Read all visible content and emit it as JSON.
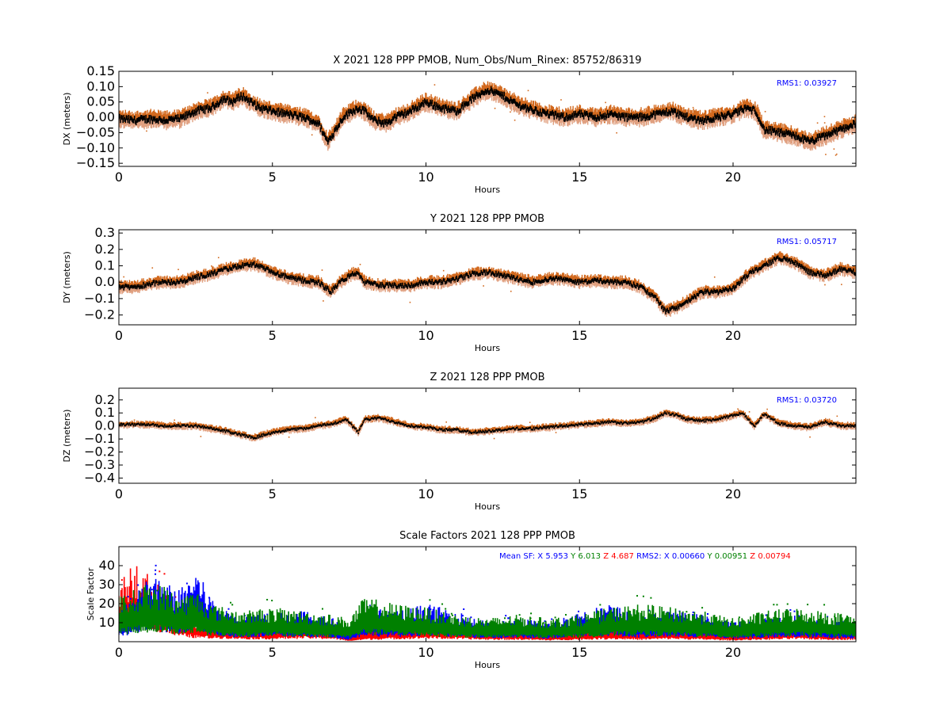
{
  "chart_data": [
    {
      "type": "scatter",
      "title": "X 2021 128 PPP  PMOB, Num_Obs/Num_Rinex: 85752/86319",
      "xlabel": "Hours",
      "ylabel": "DX (meters)",
      "xlim": [
        0,
        24
      ],
      "ylim": [
        -0.16,
        0.15
      ],
      "xticks": [
        "0",
        "5",
        "10",
        "15",
        "20"
      ],
      "yticks": [
        "0.15",
        "0.10",
        "0.05",
        "0.00",
        "−0.05",
        "−0.10",
        "−0.15"
      ],
      "yticks_values": [
        0.15,
        0.1,
        0.05,
        0.0,
        -0.05,
        -0.1,
        -0.15
      ],
      "rms": "RMS1:  0.03927",
      "rms_color": "#0000ff",
      "band_color": "#d2691e",
      "band_light_color": "#e0a080",
      "line_color": "#000000",
      "x": [
        0,
        0.5,
        1,
        1.5,
        2,
        2.3,
        2.5,
        3,
        3.4,
        3.7,
        4,
        4.3,
        4.6,
        5,
        5.5,
        6,
        6.5,
        6.8,
        7,
        7.3,
        7.6,
        7.8,
        8,
        8.3,
        8.7,
        9,
        9.5,
        10,
        10.5,
        11,
        11.5,
        12,
        12.5,
        13,
        13.3,
        13.6,
        14,
        14.5,
        15,
        15.5,
        16,
        16.5,
        17,
        17.5,
        18,
        18.5,
        19,
        19.5,
        20,
        20.4,
        20.75,
        21,
        21.5,
        22,
        22.5,
        23,
        23.5,
        24
      ],
      "y": [
        -0.005,
        -0.01,
        -0.005,
        -0.01,
        -0.005,
        0.01,
        0.02,
        0.03,
        0.06,
        0.05,
        0.07,
        0.05,
        0.03,
        0.02,
        0.01,
        0.0,
        -0.02,
        -0.08,
        -0.05,
        0.0,
        0.02,
        0.03,
        0.02,
        -0.01,
        -0.02,
        0.0,
        0.02,
        0.05,
        0.03,
        0.02,
        0.06,
        0.09,
        0.07,
        0.04,
        0.03,
        0.02,
        0.01,
        0.0,
        0.01,
        0.0,
        0.01,
        0.0,
        0.0,
        0.01,
        0.02,
        0.0,
        -0.01,
        0.0,
        0.01,
        0.03,
        0.02,
        -0.04,
        -0.05,
        -0.06,
        -0.08,
        -0.06,
        -0.04,
        -0.02
      ],
      "band": 0.03
    },
    {
      "type": "scatter",
      "title": "Y 2021 128 PPP  PMOB",
      "xlabel": "Hours",
      "ylabel": "DY (meters)",
      "xlim": [
        0,
        24
      ],
      "ylim": [
        -0.26,
        0.32
      ],
      "xticks": [
        "0",
        "5",
        "10",
        "15",
        "20"
      ],
      "yticks": [
        "0.3",
        "0.2",
        "0.1",
        "0.0",
        "−0.1",
        "−0.2"
      ],
      "yticks_values": [
        0.3,
        0.2,
        0.1,
        0.0,
        -0.1,
        -0.2
      ],
      "rms": "RMS1:  0.05717",
      "rms_color": "#0000ff",
      "band_color": "#d2691e",
      "band_light_color": "#e0a080",
      "line_color": "#000000",
      "x": [
        0,
        0.5,
        1,
        1.5,
        2,
        2.5,
        3,
        3.5,
        4,
        4.4,
        5,
        5.5,
        6,
        6.5,
        6.9,
        7.2,
        7.6,
        7.8,
        8,
        8.5,
        9,
        9.5,
        10,
        10.5,
        11,
        11.5,
        12,
        12.5,
        13,
        13.5,
        14,
        14.5,
        15,
        15.5,
        16,
        16.5,
        17,
        17.5,
        17.8,
        18.2,
        18.5,
        19,
        19.5,
        20,
        20.5,
        21,
        21.5,
        22,
        22.5,
        23,
        23.5,
        24
      ],
      "y": [
        -0.03,
        -0.03,
        -0.01,
        0.0,
        0.0,
        0.03,
        0.05,
        0.08,
        0.1,
        0.11,
        0.06,
        0.03,
        0.01,
        0.0,
        -0.06,
        0.0,
        0.05,
        0.05,
        0.0,
        -0.02,
        -0.02,
        -0.02,
        0.0,
        0.0,
        0.02,
        0.05,
        0.06,
        0.04,
        0.02,
        0.0,
        0.02,
        0.02,
        0.0,
        0.01,
        0.0,
        0.0,
        -0.03,
        -0.1,
        -0.18,
        -0.15,
        -0.12,
        -0.06,
        -0.06,
        -0.04,
        0.05,
        0.1,
        0.15,
        0.12,
        0.06,
        0.04,
        0.08,
        0.06
      ],
      "band": 0.04
    },
    {
      "type": "scatter",
      "title": "Z 2021 128 PPP  PMOB",
      "xlabel": "Hours",
      "ylabel": "DZ (meters)",
      "xlim": [
        0,
        24
      ],
      "ylim": [
        -0.44,
        0.29
      ],
      "xticks": [
        "0",
        "5",
        "10",
        "15",
        "20"
      ],
      "yticks": [
        "0.2",
        "0.1",
        "0.0",
        "−0.1",
        "−0.2",
        "−0.3",
        "−0.4"
      ],
      "yticks_values": [
        0.2,
        0.1,
        0.0,
        -0.1,
        -0.2,
        -0.3,
        -0.4
      ],
      "rms": "RMS1:  0.03720",
      "rms_color": "#0000ff",
      "band_color": "#d2691e",
      "band_light_color": "#e0a080",
      "line_color": "#000000",
      "x": [
        0,
        0.5,
        1,
        1.5,
        2,
        2.5,
        3,
        3.5,
        4,
        4.4,
        5,
        5.5,
        6,
        6.5,
        7,
        7.4,
        7.6,
        7.8,
        8,
        8.5,
        9,
        9.5,
        10,
        10.5,
        11,
        11.5,
        12,
        12.5,
        13,
        13.5,
        14,
        14.5,
        15,
        15.5,
        16,
        16.5,
        17,
        17.5,
        17.8,
        18.2,
        18.5,
        19,
        19.5,
        20,
        20.3,
        20.7,
        21,
        21.5,
        22,
        22.5,
        23,
        23.5,
        24
      ],
      "y": [
        0.01,
        0.01,
        0.01,
        0.0,
        0.0,
        0.0,
        -0.02,
        -0.04,
        -0.07,
        -0.09,
        -0.05,
        -0.03,
        -0.02,
        0.0,
        0.02,
        0.05,
        0.0,
        -0.05,
        0.05,
        0.06,
        0.03,
        0.0,
        -0.01,
        -0.03,
        -0.03,
        -0.05,
        -0.04,
        -0.03,
        -0.02,
        -0.02,
        -0.01,
        0.0,
        0.01,
        0.02,
        0.03,
        0.02,
        0.03,
        0.06,
        0.1,
        0.08,
        0.05,
        0.04,
        0.05,
        0.08,
        0.1,
        0.0,
        0.09,
        0.02,
        0.0,
        -0.01,
        0.03,
        0.0,
        0.0
      ],
      "band": 0.03
    },
    {
      "type": "scatter",
      "title": "Scale Factors 2021 128 PPP  PMOB",
      "xlabel": "Hours",
      "ylabel": "Scale Factor",
      "xlim": [
        0,
        24
      ],
      "ylim": [
        0,
        50
      ],
      "xticks": [
        "0",
        "5",
        "10",
        "15",
        "20"
      ],
      "yticks": [
        "40",
        "30",
        "20",
        "10"
      ],
      "yticks_values": [
        40,
        30,
        20,
        10
      ],
      "legend_parts": [
        {
          "text": "Mean SF: X   5.953",
          "color": "#0000ff"
        },
        {
          "text": "Y   6.013",
          "color": "#008000"
        },
        {
          "text": "Z   4.687",
          "color": "#ff0000"
        },
        {
          "text": "RMS2: X  0.00660",
          "color": "#0000ff"
        },
        {
          "text": "Y  0.00951",
          "color": "#008000"
        },
        {
          "text": "Z  0.00794",
          "color": "#ff0000"
        }
      ],
      "series": [
        {
          "color": "#ff0000",
          "x": [
            0,
            0.5,
            1,
            1.5,
            2,
            2.5,
            3,
            3.5,
            4,
            5,
            6,
            7,
            7.5,
            8,
            9,
            10,
            11,
            12,
            13,
            14,
            15,
            16,
            17,
            18,
            19,
            20,
            21,
            22,
            23,
            24
          ],
          "y": [
            15,
            22,
            18,
            14,
            8,
            6,
            5,
            5,
            4,
            4,
            5,
            4,
            1,
            3,
            4,
            5,
            4,
            3,
            3,
            2,
            3,
            4,
            3,
            4,
            3,
            2,
            3,
            4,
            3,
            3
          ]
        },
        {
          "color": "#0000ff",
          "x": [
            0,
            0.5,
            1,
            1.5,
            2,
            2.5,
            3,
            3.5,
            4,
            5,
            6,
            7,
            7.5,
            8,
            9,
            10,
            11,
            12,
            13,
            14,
            15,
            16,
            17,
            18,
            19,
            20,
            21,
            22,
            23,
            24
          ],
          "y": [
            10,
            12,
            18,
            16,
            14,
            20,
            12,
            8,
            7,
            8,
            8,
            6,
            3,
            10,
            8,
            10,
            8,
            5,
            6,
            5,
            8,
            10,
            7,
            8,
            7,
            5,
            6,
            7,
            6,
            5
          ]
        },
        {
          "color": "#008000",
          "x": [
            0,
            0.5,
            1,
            1.5,
            2,
            2.5,
            3,
            3.5,
            4,
            5,
            6,
            7,
            7.5,
            8,
            9,
            10,
            11,
            12,
            13,
            14,
            15,
            16,
            17,
            18,
            19,
            20,
            21,
            22,
            23,
            24
          ],
          "y": [
            12,
            14,
            16,
            15,
            12,
            14,
            10,
            9,
            8,
            9,
            8,
            7,
            6,
            12,
            10,
            9,
            7,
            6,
            7,
            6,
            7,
            9,
            10,
            9,
            8,
            6,
            8,
            9,
            8,
            7
          ]
        }
      ]
    }
  ]
}
